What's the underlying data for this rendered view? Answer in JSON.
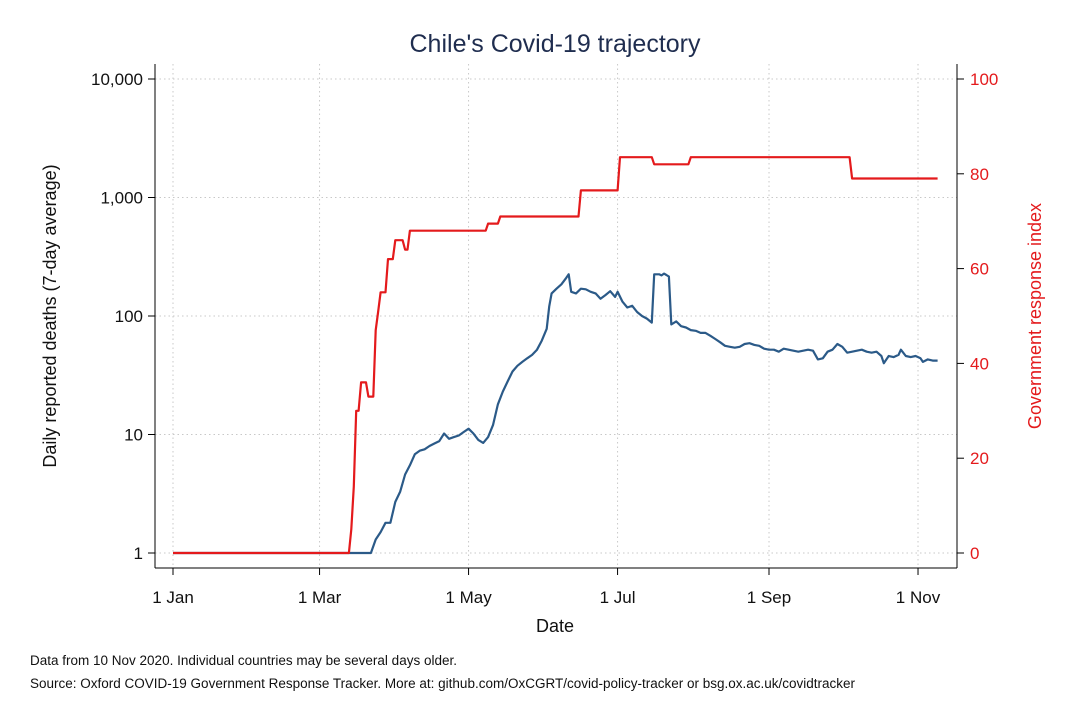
{
  "chart_data": {
    "type": "line",
    "title": "Chile's Covid-19 trajectory",
    "xlabel": "Date",
    "ylabel": "Daily reported deaths (7-day average)",
    "ylabel_right": "Government response index",
    "y_scale": "log",
    "ylim": [
      1,
      10000
    ],
    "ylim_right": [
      0,
      100
    ],
    "xlim": [
      "2020-01-01",
      "2020-11-10"
    ],
    "x_ticks": [
      {
        "date": "2020-01-01",
        "label": "1 Jan"
      },
      {
        "date": "2020-03-01",
        "label": "1 Mar"
      },
      {
        "date": "2020-05-01",
        "label": "1 May"
      },
      {
        "date": "2020-07-01",
        "label": "1 Jul"
      },
      {
        "date": "2020-09-01",
        "label": "1 Sep"
      },
      {
        "date": "2020-11-01",
        "label": "1 Nov"
      }
    ],
    "y_ticks_left": [
      {
        "value": 1,
        "label": "1"
      },
      {
        "value": 10,
        "label": "10"
      },
      {
        "value": 100,
        "label": "100"
      },
      {
        "value": 1000,
        "label": "1,000"
      },
      {
        "value": 10000,
        "label": "10,000"
      }
    ],
    "y_ticks_right": [
      {
        "value": 0,
        "label": "0"
      },
      {
        "value": 20,
        "label": "20"
      },
      {
        "value": 40,
        "label": "40"
      },
      {
        "value": 60,
        "label": "60"
      },
      {
        "value": 80,
        "label": "80"
      },
      {
        "value": 100,
        "label": "100"
      }
    ],
    "grid": true,
    "series": [
      {
        "axis": "left",
        "color": "#2b5a88",
        "points": [
          [
            "2020-01-01",
            1
          ],
          [
            "2020-03-22",
            1
          ],
          [
            "2020-03-24",
            1.3
          ],
          [
            "2020-03-26",
            1.5
          ],
          [
            "2020-03-28",
            1.8
          ],
          [
            "2020-03-30",
            1.8
          ],
          [
            "2020-04-01",
            2.7
          ],
          [
            "2020-04-03",
            3.3
          ],
          [
            "2020-04-05",
            4.6
          ],
          [
            "2020-04-07",
            5.5
          ],
          [
            "2020-04-09",
            6.8
          ],
          [
            "2020-04-11",
            7.3
          ],
          [
            "2020-04-13",
            7.5
          ],
          [
            "2020-04-15",
            8.0
          ],
          [
            "2020-04-17",
            8.4
          ],
          [
            "2020-04-19",
            8.8
          ],
          [
            "2020-04-21",
            10.2
          ],
          [
            "2020-04-23",
            9.2
          ],
          [
            "2020-04-25",
            9.5
          ],
          [
            "2020-04-27",
            9.8
          ],
          [
            "2020-04-29",
            10.5
          ],
          [
            "2020-05-01",
            11.2
          ],
          [
            "2020-05-03",
            10.2
          ],
          [
            "2020-05-05",
            9.0
          ],
          [
            "2020-05-07",
            8.5
          ],
          [
            "2020-05-09",
            9.5
          ],
          [
            "2020-05-11",
            12
          ],
          [
            "2020-05-13",
            18
          ],
          [
            "2020-05-15",
            23
          ],
          [
            "2020-05-17",
            28
          ],
          [
            "2020-05-19",
            34
          ],
          [
            "2020-05-21",
            38
          ],
          [
            "2020-05-23",
            41
          ],
          [
            "2020-05-25",
            44
          ],
          [
            "2020-05-27",
            47
          ],
          [
            "2020-05-29",
            52
          ],
          [
            "2020-05-31",
            62
          ],
          [
            "2020-06-02",
            78
          ],
          [
            "2020-06-03",
            120
          ],
          [
            "2020-06-04",
            155
          ],
          [
            "2020-06-06",
            170
          ],
          [
            "2020-06-08",
            185
          ],
          [
            "2020-06-10",
            210
          ],
          [
            "2020-06-11",
            225
          ],
          [
            "2020-06-12",
            160
          ],
          [
            "2020-06-14",
            155
          ],
          [
            "2020-06-16",
            170
          ],
          [
            "2020-06-18",
            168
          ],
          [
            "2020-06-20",
            160
          ],
          [
            "2020-06-22",
            155
          ],
          [
            "2020-06-24",
            140
          ],
          [
            "2020-06-26",
            150
          ],
          [
            "2020-06-28",
            162
          ],
          [
            "2020-06-30",
            145
          ],
          [
            "2020-07-01",
            160
          ],
          [
            "2020-07-03",
            132
          ],
          [
            "2020-07-05",
            118
          ],
          [
            "2020-07-07",
            122
          ],
          [
            "2020-07-09",
            108
          ],
          [
            "2020-07-11",
            100
          ],
          [
            "2020-07-13",
            95
          ],
          [
            "2020-07-15",
            88
          ],
          [
            "2020-07-16",
            225
          ],
          [
            "2020-07-18",
            225
          ],
          [
            "2020-07-19",
            220
          ],
          [
            "2020-07-20",
            228
          ],
          [
            "2020-07-21",
            222
          ],
          [
            "2020-07-22",
            215
          ],
          [
            "2020-07-23",
            85
          ],
          [
            "2020-07-25",
            90
          ],
          [
            "2020-07-27",
            82
          ],
          [
            "2020-07-29",
            80
          ],
          [
            "2020-07-31",
            76
          ],
          [
            "2020-08-02",
            75
          ],
          [
            "2020-08-04",
            72
          ],
          [
            "2020-08-06",
            72
          ],
          [
            "2020-08-08",
            68
          ],
          [
            "2020-08-10",
            64
          ],
          [
            "2020-08-12",
            60
          ],
          [
            "2020-08-14",
            56
          ],
          [
            "2020-08-16",
            55
          ],
          [
            "2020-08-18",
            54
          ],
          [
            "2020-08-20",
            55
          ],
          [
            "2020-08-22",
            58
          ],
          [
            "2020-08-24",
            59
          ],
          [
            "2020-08-26",
            57
          ],
          [
            "2020-08-28",
            56
          ],
          [
            "2020-08-30",
            53
          ],
          [
            "2020-09-01",
            52
          ],
          [
            "2020-09-03",
            52
          ],
          [
            "2020-09-05",
            50
          ],
          [
            "2020-09-07",
            53
          ],
          [
            "2020-09-09",
            52
          ],
          [
            "2020-09-11",
            51
          ],
          [
            "2020-09-13",
            50
          ],
          [
            "2020-09-15",
            51
          ],
          [
            "2020-09-17",
            52
          ],
          [
            "2020-09-19",
            51
          ],
          [
            "2020-09-21",
            43
          ],
          [
            "2020-09-23",
            44
          ],
          [
            "2020-09-25",
            50
          ],
          [
            "2020-09-27",
            52
          ],
          [
            "2020-09-29",
            58
          ],
          [
            "2020-10-01",
            55
          ],
          [
            "2020-10-03",
            49
          ],
          [
            "2020-10-05",
            50
          ],
          [
            "2020-10-07",
            51
          ],
          [
            "2020-10-09",
            52
          ],
          [
            "2020-10-11",
            50
          ],
          [
            "2020-10-13",
            49
          ],
          [
            "2020-10-15",
            50
          ],
          [
            "2020-10-17",
            46
          ],
          [
            "2020-10-18",
            40
          ],
          [
            "2020-10-20",
            46
          ],
          [
            "2020-10-22",
            45
          ],
          [
            "2020-10-24",
            47
          ],
          [
            "2020-10-25",
            52
          ],
          [
            "2020-10-27",
            46
          ],
          [
            "2020-10-29",
            45
          ],
          [
            "2020-10-31",
            46
          ],
          [
            "2020-11-02",
            44
          ],
          [
            "2020-11-03",
            41
          ],
          [
            "2020-11-05",
            43
          ],
          [
            "2020-11-07",
            42
          ],
          [
            "2020-11-09",
            42
          ]
        ]
      },
      {
        "axis": "right",
        "color": "#e41a1c",
        "points": [
          [
            "2020-01-01",
            0
          ],
          [
            "2020-03-13",
            0
          ],
          [
            "2020-03-14",
            5
          ],
          [
            "2020-03-15",
            14
          ],
          [
            "2020-03-16",
            30
          ],
          [
            "2020-03-17",
            30
          ],
          [
            "2020-03-18",
            36
          ],
          [
            "2020-03-20",
            36
          ],
          [
            "2020-03-21",
            33
          ],
          [
            "2020-03-23",
            33
          ],
          [
            "2020-03-24",
            47
          ],
          [
            "2020-03-25",
            51
          ],
          [
            "2020-03-26",
            55
          ],
          [
            "2020-03-28",
            55
          ],
          [
            "2020-03-29",
            62
          ],
          [
            "2020-03-31",
            62
          ],
          [
            "2020-04-01",
            66
          ],
          [
            "2020-04-04",
            66
          ],
          [
            "2020-04-05",
            64
          ],
          [
            "2020-04-06",
            64
          ],
          [
            "2020-04-07",
            68
          ],
          [
            "2020-05-08",
            68
          ],
          [
            "2020-05-09",
            69.5
          ],
          [
            "2020-05-13",
            69.5
          ],
          [
            "2020-05-14",
            71
          ],
          [
            "2020-06-15",
            71
          ],
          [
            "2020-06-16",
            76.5
          ],
          [
            "2020-07-01",
            76.5
          ],
          [
            "2020-07-02",
            83.5
          ],
          [
            "2020-07-15",
            83.5
          ],
          [
            "2020-07-16",
            82
          ],
          [
            "2020-07-30",
            82
          ],
          [
            "2020-07-31",
            83.5
          ],
          [
            "2020-10-04",
            83.5
          ],
          [
            "2020-10-05",
            79
          ],
          [
            "2020-11-09",
            79
          ]
        ]
      }
    ]
  },
  "footnotes": {
    "line1": "Data from 10 Nov 2020. Individual countries may be several days older.",
    "line2": "Source: Oxford COVID-19 Government Response Tracker. More at: github.com/OxCGRT/covid-policy-tracker or bsg.ox.ac.uk/covidtracker"
  }
}
